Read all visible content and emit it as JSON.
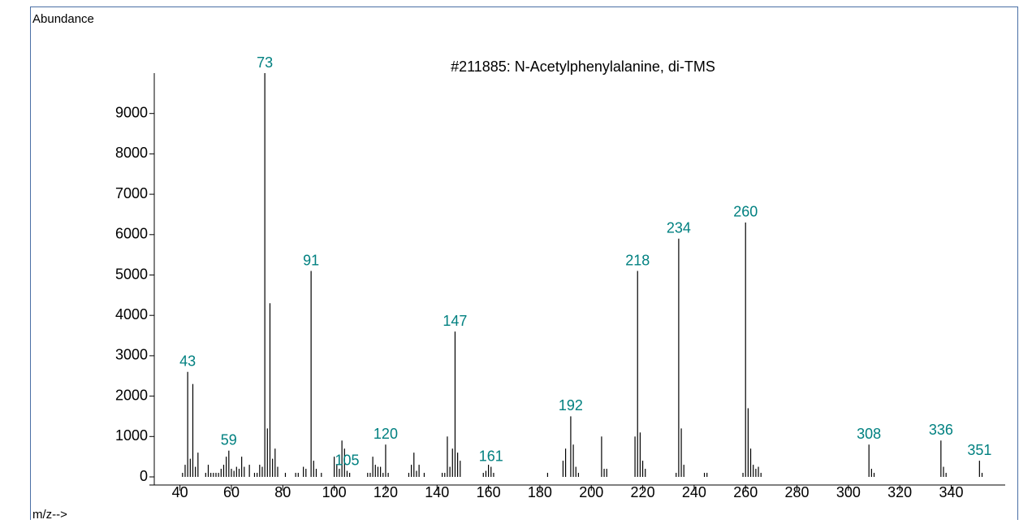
{
  "chart_data": {
    "type": "bar",
    "title": "#211885: N-Acetylphenylalanine, di-TMS",
    "y_label": "Abundance",
    "x_label": "m/z-->",
    "color": "#000000",
    "label_color": "#008080",
    "x": [
      41,
      42,
      43,
      44,
      45,
      46,
      47,
      50,
      51,
      52,
      53,
      54,
      55,
      56,
      57,
      58,
      59,
      60,
      61,
      62,
      63,
      64,
      65,
      67,
      69,
      70,
      71,
      72,
      73,
      74,
      75,
      76,
      77,
      78,
      81,
      85,
      86,
      88,
      89,
      91,
      92,
      93,
      95,
      100,
      101,
      102,
      103,
      104,
      105,
      106,
      113,
      114,
      115,
      116,
      117,
      118,
      119,
      120,
      121,
      129,
      130,
      131,
      132,
      133,
      135,
      142,
      143,
      144,
      145,
      146,
      147,
      148,
      149,
      158,
      159,
      160,
      161,
      162,
      183,
      189,
      190,
      192,
      193,
      194,
      195,
      204,
      205,
      206,
      217,
      218,
      219,
      220,
      221,
      233,
      234,
      235,
      236,
      244,
      245,
      259,
      260,
      261,
      262,
      263,
      264,
      265,
      266,
      308,
      309,
      310,
      336,
      337,
      338,
      351,
      352
    ],
    "values": [
      100,
      300,
      2600,
      450,
      2300,
      250,
      600,
      100,
      300,
      100,
      100,
      100,
      100,
      200,
      300,
      500,
      650,
      200,
      150,
      250,
      200,
      500,
      250,
      300,
      100,
      100,
      300,
      250,
      10000,
      1200,
      4300,
      450,
      700,
      250,
      100,
      100,
      100,
      250,
      200,
      5100,
      400,
      200,
      100,
      500,
      300,
      200,
      900,
      700,
      150,
      100,
      100,
      100,
      500,
      300,
      250,
      250,
      100,
      800,
      100,
      100,
      300,
      600,
      150,
      300,
      100,
      100,
      100,
      1000,
      250,
      700,
      3600,
      600,
      400,
      100,
      150,
      300,
      250,
      100,
      100,
      400,
      700,
      1500,
      800,
      250,
      100,
      1000,
      200,
      200,
      1000,
      5100,
      1100,
      400,
      200,
      100,
      5900,
      1200,
      300,
      100,
      100,
      100,
      6300,
      1700,
      700,
      300,
      200,
      250,
      100,
      800,
      200,
      100,
      900,
      250,
      100,
      400,
      100
    ],
    "labeled_x": [
      43,
      59,
      73,
      91,
      105,
      120,
      147,
      161,
      192,
      218,
      234,
      260,
      308,
      336,
      351
    ],
    "xlim": [
      30,
      361
    ],
    "ylim": [
      0,
      10000
    ],
    "xticks": [
      40,
      60,
      80,
      100,
      120,
      140,
      160,
      180,
      200,
      220,
      240,
      260,
      280,
      300,
      320,
      340
    ],
    "yticks": [
      0,
      1000,
      2000,
      3000,
      4000,
      5000,
      6000,
      7000,
      8000,
      9000
    ]
  }
}
